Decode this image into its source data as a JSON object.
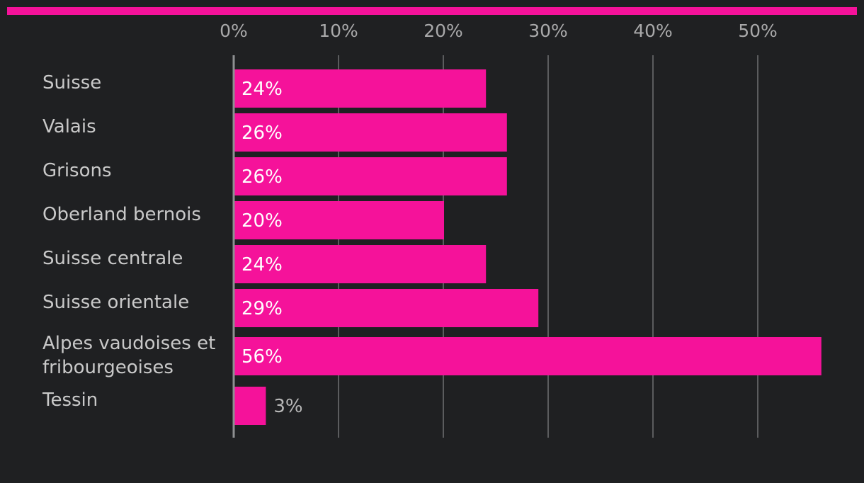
{
  "colors": {
    "background": "#1f2022",
    "accent": "#f5129a",
    "gridline": "#5b5c5e",
    "axis_line": "#8e8f91",
    "label_text": "#c9c9c9",
    "tick_text": "#a9a9aa",
    "value_text_inside": "#ffffff",
    "value_text_outside": "#b8b8b8"
  },
  "chart_data": {
    "type": "bar",
    "orientation": "horizontal",
    "title": "",
    "xlabel": "",
    "ylabel": "",
    "categories": [
      "Suisse",
      "Valais",
      "Grisons",
      "Oberland bernois",
      "Suisse centrale",
      "Suisse orientale",
      "Alpes vaudoises et fribourgeoises",
      "Tessin"
    ],
    "values": [
      24,
      26,
      26,
      20,
      24,
      29,
      56,
      3
    ],
    "value_labels": [
      "24%",
      "26%",
      "26%",
      "20%",
      "24%",
      "29%",
      "56%",
      "3%"
    ],
    "xlim": [
      0,
      60
    ],
    "x_ticks": [
      0,
      10,
      20,
      30,
      40,
      50
    ],
    "x_tick_labels": [
      "0%",
      "10%",
      "20%",
      "30%",
      "40%",
      "50%"
    ],
    "grid": true,
    "legend": "none"
  }
}
